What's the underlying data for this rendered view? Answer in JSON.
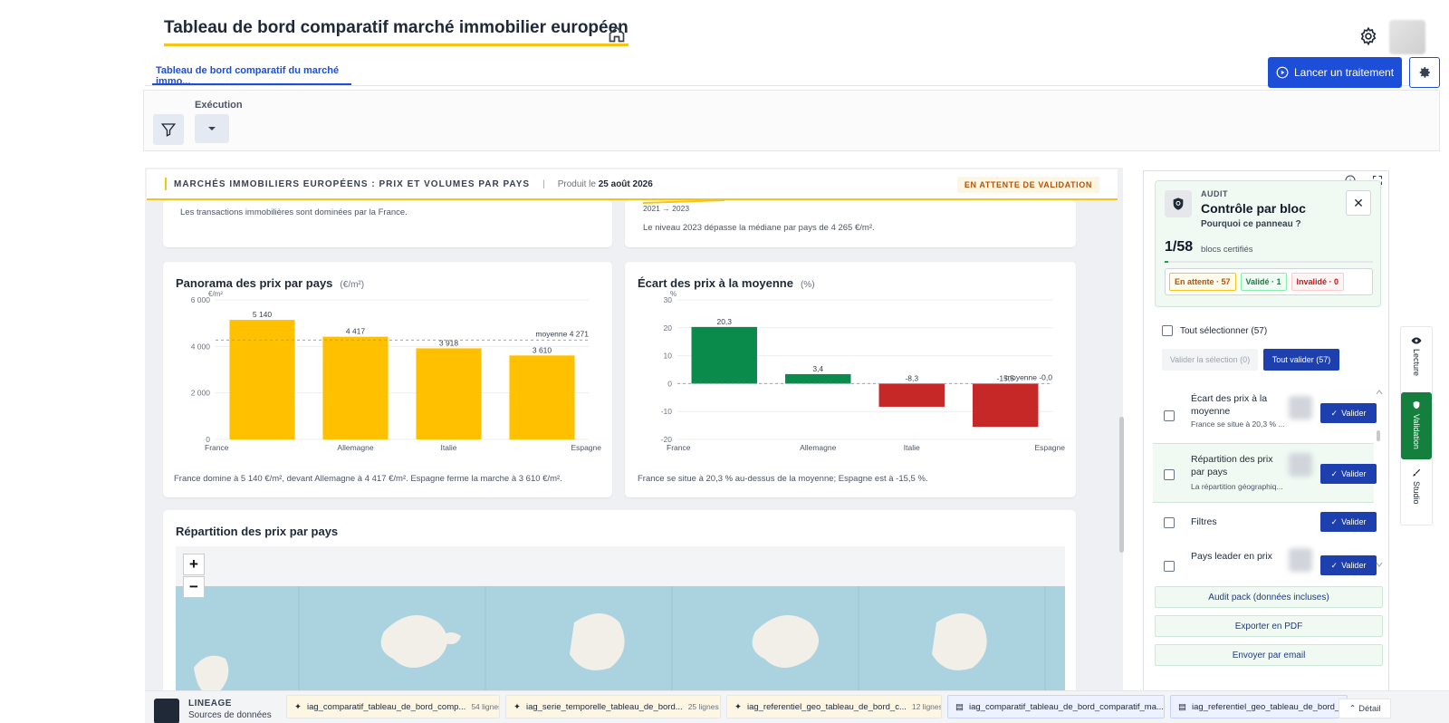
{
  "header": {
    "title": "Tableau de bord comparatif marché immobilier européen",
    "tab_label": "Tableau de bord comparatif du marché immo...",
    "launch_label": "Lancer un traitement"
  },
  "filters": {
    "exec_label": "Exécution"
  },
  "report": {
    "heading": "MARCHÉS IMMOBILIERS EUROPÉENS : PRIX ET VOLUMES PAR PAYS",
    "produced_prefix": "Produit le",
    "produced_date": "25 août 2026",
    "status_badge": "EN ATTENTE DE VALIDATION",
    "top_left_note": "Les transactions immobilières sont dominées par la France.",
    "top_right_range": "2021 → 2023",
    "top_right_note": "Le niveau 2023 dépasse la médiane par pays de 4 265 €/m².",
    "map_title": "Répartition des prix par pays"
  },
  "chart_data": [
    {
      "type": "bar",
      "title": "Panorama des prix par pays",
      "unit": "(€/m²)",
      "ylabel": "€/m²",
      "categories": [
        "France",
        "Allemagne",
        "Italie",
        "Espagne"
      ],
      "values": [
        5140,
        4417,
        3918,
        3610
      ],
      "value_labels": [
        "5 140",
        "4 417",
        "3 918",
        "3 610"
      ],
      "ylim": [
        0,
        6000
      ],
      "yticks": [
        0,
        2000,
        4000,
        6000
      ],
      "ytick_labels": [
        "0",
        "2 000",
        "4 000",
        "6 000"
      ],
      "reference": 4271,
      "reference_label": "moyenne 4 271",
      "color": "#ffc000",
      "note": "France domine à 5 140 €/m², devant Allemagne à 4 417 €/m². Espagne ferme la marche à 3 610 €/m²."
    },
    {
      "type": "bar",
      "title": "Écart des prix à la moyenne",
      "unit": "(%)",
      "ylabel": "%",
      "categories": [
        "France",
        "Allemagne",
        "Italie",
        "Espagne"
      ],
      "values": [
        20.3,
        3.4,
        -8.3,
        -15.5
      ],
      "value_labels": [
        "20,3",
        "3,4",
        "-8,3",
        "-15,5"
      ],
      "ylim": [
        -20,
        30
      ],
      "yticks": [
        -20,
        -10,
        0,
        10,
        20,
        30
      ],
      "ytick_labels": [
        "-20",
        "-10",
        "0",
        "10",
        "20",
        "30"
      ],
      "reference": 0,
      "reference_label": "moyenne -0,0",
      "positive_color": "#0a8a4b",
      "negative_color": "#c62828",
      "note": "France se situe à 20,3 % au-dessus de la moyenne; Espagne est à -15,5 %."
    }
  ],
  "audit": {
    "small": "AUDIT",
    "title": "Contrôle par bloc",
    "why": "Pourquoi ce panneau ?",
    "certified": "1/58",
    "certified_label": "blocs certifiés",
    "certified_fraction": 0.017,
    "pending": "En attente · 57",
    "validated": "Validé · 1",
    "invalidated": "Invalidé · 0",
    "select_all": "Tout sélectionner (57)",
    "validate_selection": "Valider la sélection (0)",
    "validate_all": "Tout valider (57)",
    "validate_label": "Valider",
    "items": [
      {
        "title": "Écart des prix à la moyenne",
        "sub": "France se situe à 20,3 % ..."
      },
      {
        "title": "Répartition des prix par pays",
        "sub": "La répartition géographiq..."
      },
      {
        "title": "Filtres",
        "sub": ""
      },
      {
        "title": "Pays leader en prix",
        "sub": ""
      }
    ],
    "audit_pack": "Audit pack (données incluses)",
    "export_pdf": "Exporter en PDF",
    "send_email": "Envoyer par email"
  },
  "sidetabs": {
    "lecture": "Lecture",
    "validation": "Validation",
    "studio": "Studio"
  },
  "lineage": {
    "label": "LINEAGE",
    "sub": "Sources de données",
    "detail": "Détail",
    "chips": [
      {
        "name": "iag_comparatif_tableau_de_bord_comp...",
        "lines": "54 lignes"
      },
      {
        "name": "iag_serie_temporelle_tableau_de_bord...",
        "lines": "25 lignes"
      },
      {
        "name": "iag_referentiel_geo_tableau_de_bord_c...",
        "lines": "12 lignes"
      },
      {
        "name": "iag_comparatif_tableau_de_bord_comparatif_ma...",
        "lines": ""
      },
      {
        "name": "iag_referentiel_geo_tableau_de_bord_c...",
        "lines": ""
      }
    ]
  }
}
